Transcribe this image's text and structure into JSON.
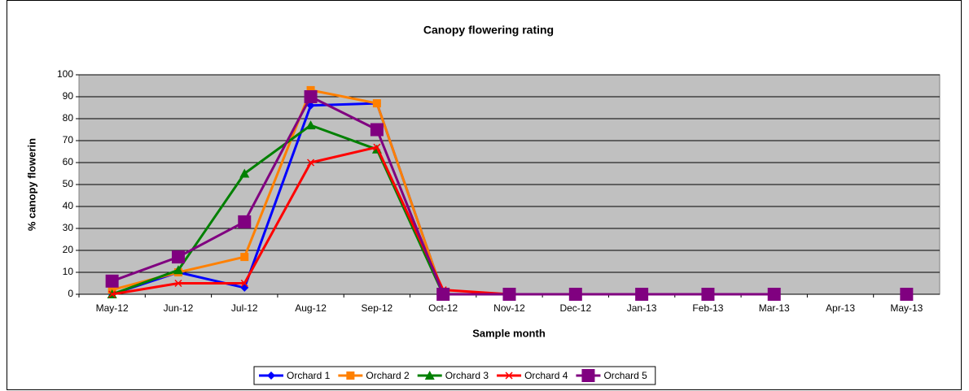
{
  "chart_data": {
    "type": "line",
    "title": "Canopy flowering rating",
    "x_label": "Sample month",
    "y_label": "% canopy flowerin",
    "categories": [
      "May-12",
      "Jun-12",
      "Jul-12",
      "Aug-12",
      "Sep-12",
      "Oct-12",
      "Nov-12",
      "Dec-12",
      "Jan-13",
      "Feb-13",
      "Mar-13",
      "Apr-13",
      "May-13"
    ],
    "ylim": [
      0,
      100
    ],
    "yticks": [
      0,
      10,
      20,
      30,
      40,
      50,
      60,
      70,
      80,
      90,
      100
    ],
    "grid": true,
    "legend": "bottom",
    "series": [
      {
        "name": "Orchard 1",
        "color": "#0000ff",
        "marker": "diamond",
        "values": [
          0,
          10,
          3,
          86,
          87,
          0,
          0,
          0,
          0,
          0,
          0,
          null,
          0
        ]
      },
      {
        "name": "Orchard 2",
        "color": "#ff8000",
        "marker": "square",
        "values": [
          2,
          10,
          17,
          93,
          87,
          0,
          0,
          0,
          0,
          0,
          0,
          null,
          0
        ]
      },
      {
        "name": "Orchard 3",
        "color": "#008000",
        "marker": "triangle",
        "values": [
          0,
          11,
          55,
          77,
          66,
          0,
          0,
          0,
          0,
          0,
          0,
          null,
          0
        ]
      },
      {
        "name": "Orchard 4",
        "color": "#ff0000",
        "marker": "x",
        "values": [
          0,
          5,
          5,
          60,
          67,
          2,
          0,
          0,
          0,
          0,
          0,
          null,
          0
        ]
      },
      {
        "name": "Orchard 5",
        "color": "#800080",
        "marker": "bigsquare",
        "values": [
          6,
          17,
          33,
          90,
          75,
          0,
          0,
          0,
          0,
          0,
          0,
          null,
          0
        ]
      }
    ]
  }
}
